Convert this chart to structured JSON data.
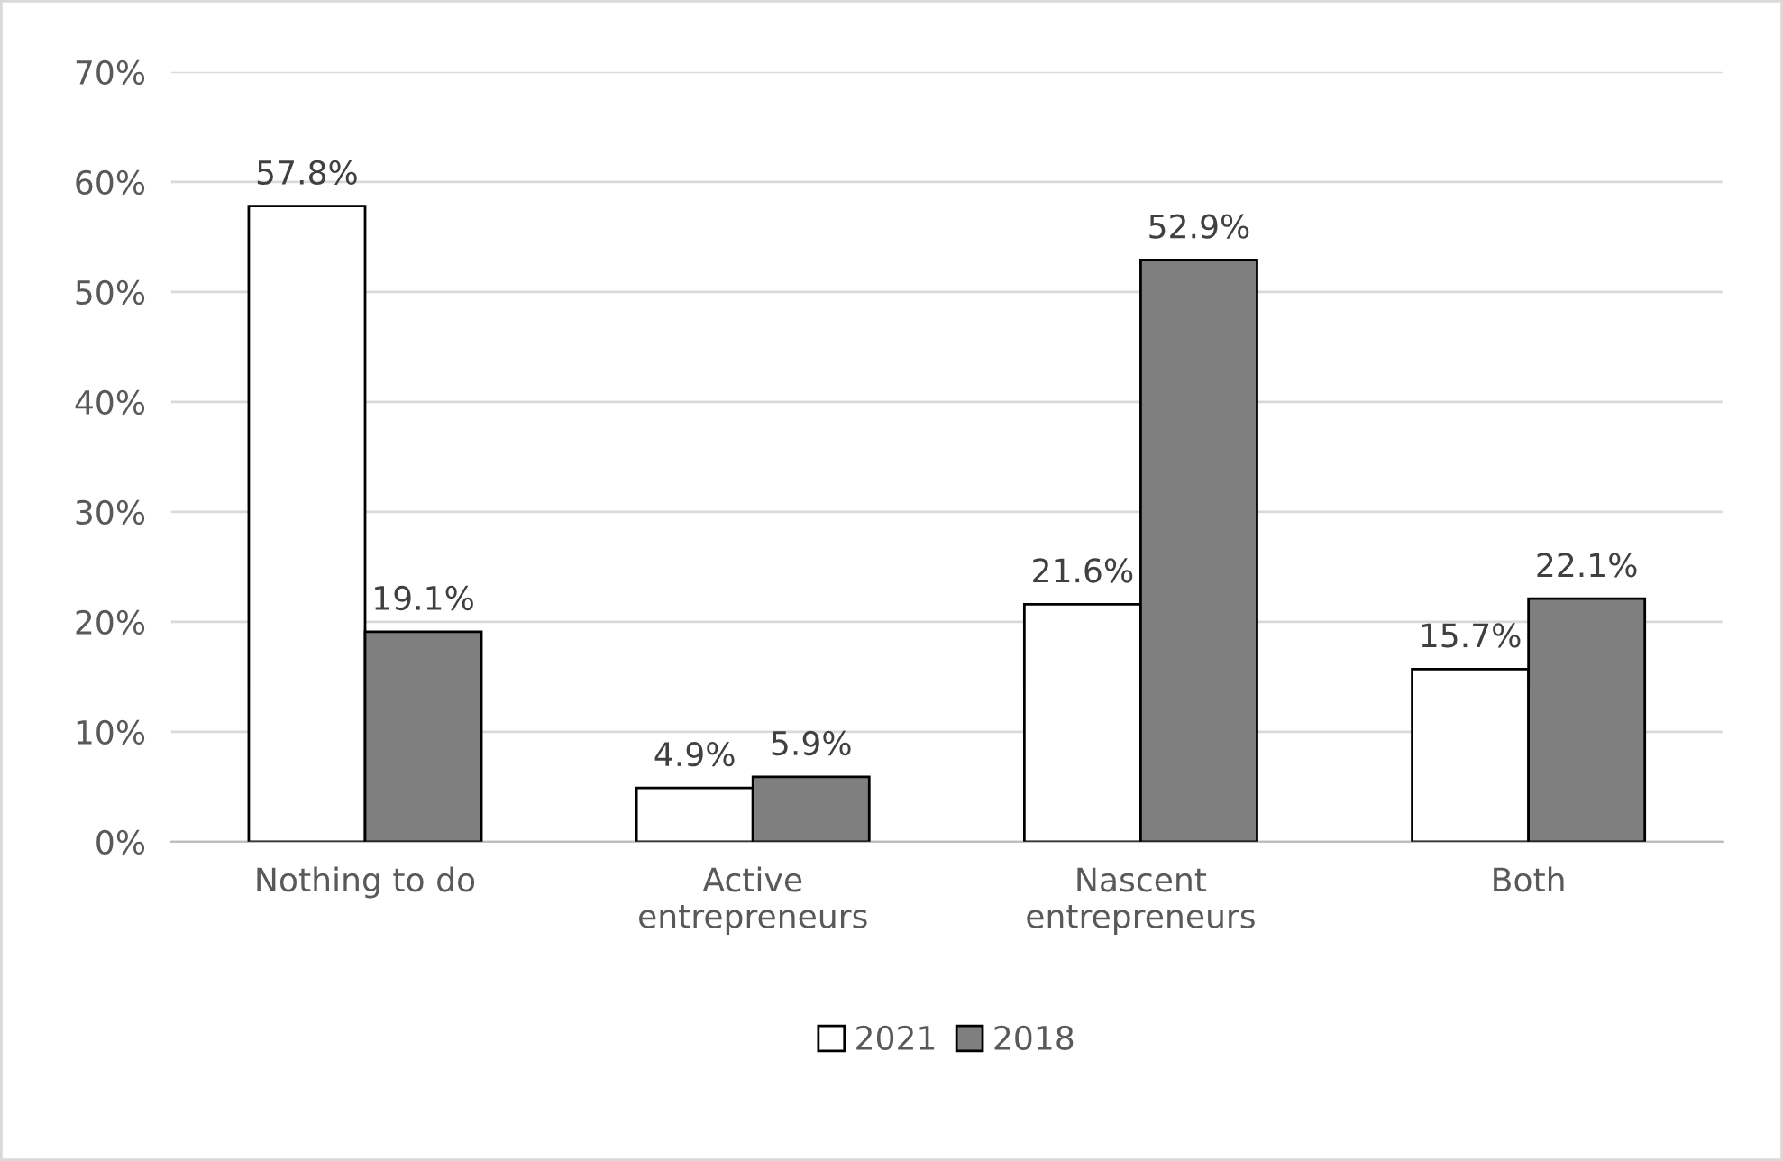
{
  "chart_data": {
    "type": "bar",
    "categories": [
      "Nothing to do",
      "Active\nentrepreneurs",
      "Nascent\nentrepreneurs",
      "Both"
    ],
    "series": [
      {
        "name": "2021",
        "color": "#ffffff",
        "values": [
          57.8,
          4.9,
          21.6,
          15.7
        ],
        "value_labels": [
          "57.8%",
          "4.9%",
          "21.6%",
          "15.7%"
        ]
      },
      {
        "name": "2018",
        "color": "#7f7f7f",
        "values": [
          19.1,
          5.9,
          52.9,
          22.1
        ],
        "value_labels": [
          "19.1%",
          "5.9%",
          "52.9%",
          "22.1%"
        ]
      }
    ],
    "ylim": [
      0,
      70
    ],
    "yticks": [
      {
        "value": 0,
        "label": "0%"
      },
      {
        "value": 10,
        "label": "10%"
      },
      {
        "value": 20,
        "label": "20%"
      },
      {
        "value": 30,
        "label": "30%"
      },
      {
        "value": 40,
        "label": "40%"
      },
      {
        "value": 50,
        "label": "50%"
      },
      {
        "value": 60,
        "label": "60%"
      },
      {
        "value": 70,
        "label": "70%"
      }
    ],
    "grid": "y",
    "legend": "bottom"
  }
}
